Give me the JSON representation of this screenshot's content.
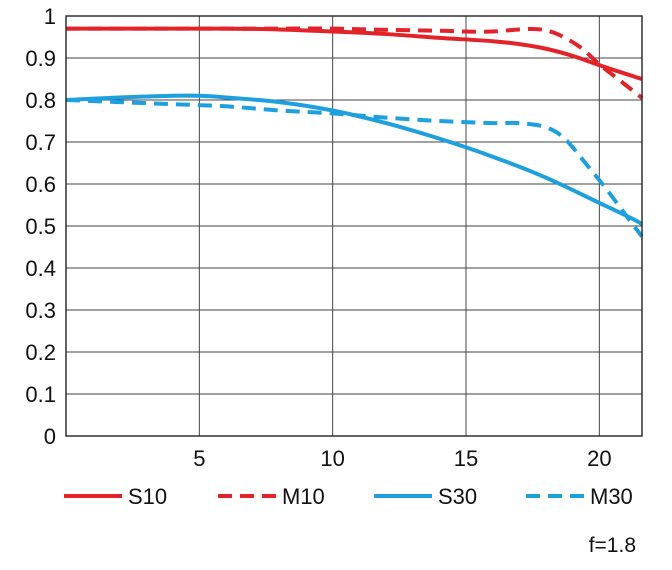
{
  "chart_data": {
    "type": "line",
    "title": "",
    "xlabel": "",
    "ylabel": "",
    "xlim": [
      0,
      21.6
    ],
    "ylim": [
      0,
      1
    ],
    "x_ticks": [
      {
        "value": 5,
        "label": "5"
      },
      {
        "value": 10,
        "label": "10"
      },
      {
        "value": 15,
        "label": "15"
      },
      {
        "value": 20,
        "label": "20"
      }
    ],
    "y_ticks": [
      {
        "value": 0,
        "label": "0"
      },
      {
        "value": 0.1,
        "label": "0.1"
      },
      {
        "value": 0.2,
        "label": "0.2"
      },
      {
        "value": 0.3,
        "label": "0.3"
      },
      {
        "value": 0.4,
        "label": "0.4"
      },
      {
        "value": 0.5,
        "label": "0.5"
      },
      {
        "value": 0.6,
        "label": "0.6"
      },
      {
        "value": 0.7,
        "label": "0.7"
      },
      {
        "value": 0.8,
        "label": "0.8"
      },
      {
        "value": 0.9,
        "label": "0.9"
      },
      {
        "value": 1,
        "label": "1"
      }
    ],
    "grid": true,
    "legend_position": "bottom",
    "annotation": "f=1.8",
    "series": [
      {
        "name": "S10",
        "color": "#e2242a",
        "style": "solid",
        "points": [
          [
            0,
            0.97
          ],
          [
            2,
            0.97
          ],
          [
            4,
            0.97
          ],
          [
            6,
            0.97
          ],
          [
            8,
            0.968
          ],
          [
            10,
            0.963
          ],
          [
            12,
            0.957
          ],
          [
            14,
            0.948
          ],
          [
            16,
            0.94
          ],
          [
            17,
            0.933
          ],
          [
            18,
            0.922
          ],
          [
            19,
            0.905
          ],
          [
            20,
            0.883
          ],
          [
            21,
            0.862
          ],
          [
            21.6,
            0.85
          ]
        ]
      },
      {
        "name": "M10",
        "color": "#e2242a",
        "style": "dashed",
        "points": [
          [
            0,
            0.97
          ],
          [
            2,
            0.97
          ],
          [
            4,
            0.97
          ],
          [
            6,
            0.97
          ],
          [
            8,
            0.97
          ],
          [
            10,
            0.97
          ],
          [
            12,
            0.967
          ],
          [
            14,
            0.965
          ],
          [
            15,
            0.963
          ],
          [
            16,
            0.963
          ],
          [
            17,
            0.968
          ],
          [
            17.8,
            0.968
          ],
          [
            18.5,
            0.955
          ],
          [
            19.3,
            0.925
          ],
          [
            20,
            0.885
          ],
          [
            20.7,
            0.85
          ],
          [
            21.2,
            0.825
          ],
          [
            21.6,
            0.805
          ]
        ]
      },
      {
        "name": "S30",
        "color": "#1ea0de",
        "style": "solid",
        "points": [
          [
            0,
            0.8
          ],
          [
            2,
            0.806
          ],
          [
            4,
            0.81
          ],
          [
            5,
            0.81
          ],
          [
            6,
            0.806
          ],
          [
            8,
            0.795
          ],
          [
            10,
            0.775
          ],
          [
            12,
            0.745
          ],
          [
            14,
            0.708
          ],
          [
            16,
            0.665
          ],
          [
            18,
            0.615
          ],
          [
            20,
            0.555
          ],
          [
            21,
            0.525
          ],
          [
            21.6,
            0.505
          ]
        ]
      },
      {
        "name": "M30",
        "color": "#1ea0de",
        "style": "dashed",
        "points": [
          [
            0,
            0.8
          ],
          [
            2,
            0.795
          ],
          [
            4,
            0.79
          ],
          [
            6,
            0.785
          ],
          [
            8,
            0.775
          ],
          [
            10,
            0.768
          ],
          [
            12,
            0.758
          ],
          [
            14,
            0.75
          ],
          [
            16,
            0.745
          ],
          [
            17,
            0.745
          ],
          [
            18,
            0.735
          ],
          [
            18.7,
            0.708
          ],
          [
            19.5,
            0.648
          ],
          [
            20.3,
            0.585
          ],
          [
            21,
            0.525
          ],
          [
            21.6,
            0.475
          ]
        ]
      }
    ]
  }
}
